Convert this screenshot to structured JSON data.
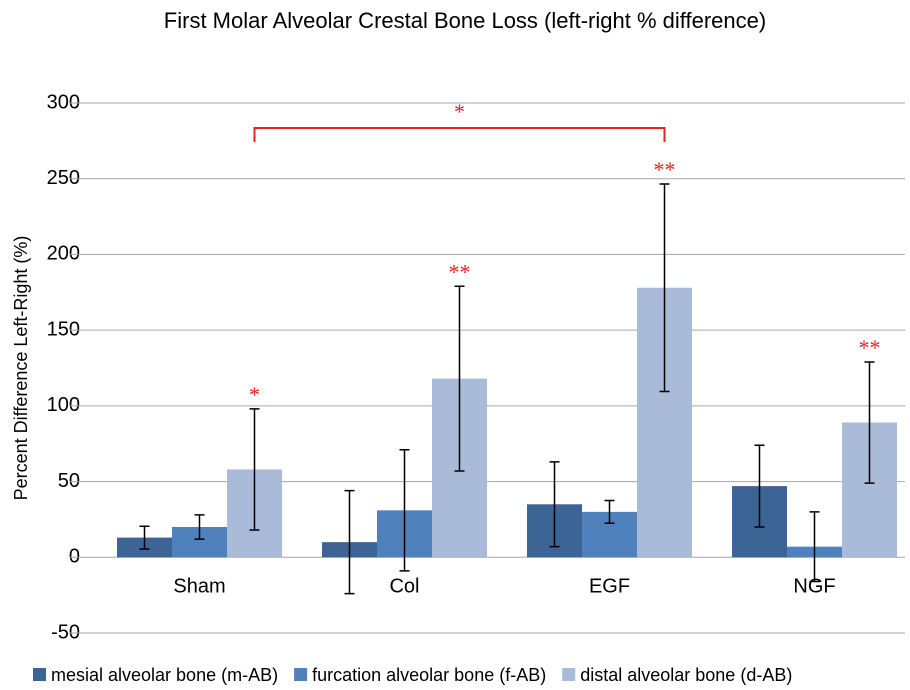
{
  "chart_data": {
    "type": "bar",
    "title": "First Molar Alveolar Crestal Bone Loss (left-right % difference)",
    "y_label": "Percent Difference Left-Right (%)",
    "categories": [
      "Sham",
      "Col",
      "EGF",
      "NGF"
    ],
    "series": [
      {
        "name": "mesial alveolar bone (m-AB)",
        "color": "#3c6595",
        "values": [
          13,
          10,
          35,
          47
        ],
        "errors": [
          7.5,
          34,
          28,
          27
        ]
      },
      {
        "name": "furcation alveolar bone (f-AB)",
        "color": "#4f81bd",
        "values": [
          20,
          31,
          30,
          7
        ],
        "errors": [
          8,
          40,
          7.5,
          23
        ]
      },
      {
        "name": "distal alveolar bone (d-AB)",
        "color": "#a9bbd9",
        "values": [
          58,
          118,
          178,
          89
        ],
        "errors": [
          40,
          61,
          68.5,
          40
        ],
        "significance": [
          "*",
          "**",
          "**",
          "**"
        ]
      }
    ],
    "bracket_label": "*",
    "ylim": [
      -50,
      300
    ],
    "yticks": [
      -50,
      0,
      50,
      100,
      150,
      200,
      250,
      300
    ],
    "grid": true
  }
}
